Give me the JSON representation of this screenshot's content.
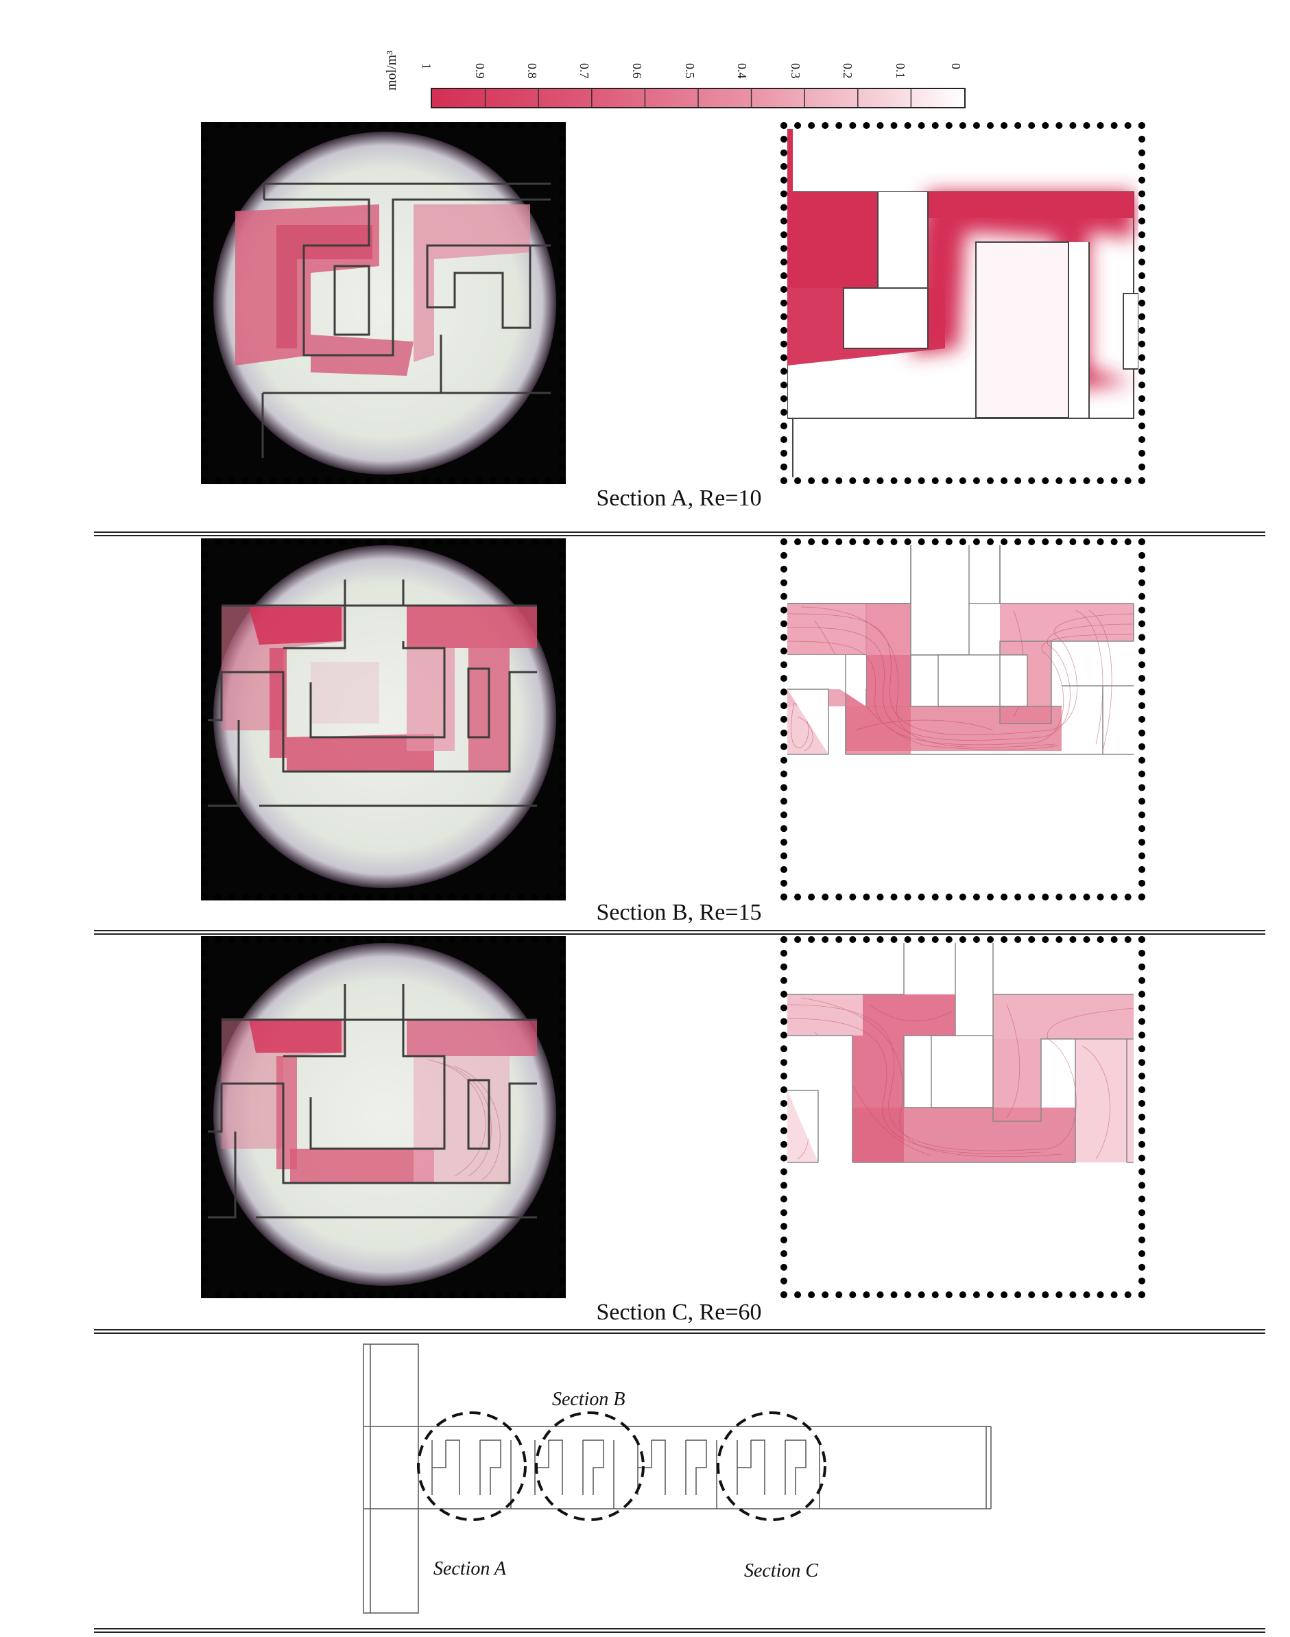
{
  "colorbar": {
    "unit": "mol/m³",
    "ticks": [
      "1",
      "0.9",
      "0.8",
      "0.7",
      "0.6",
      "0.5",
      "0.4",
      "0.3",
      "0.2",
      "0.1",
      "0"
    ],
    "color_high": "#d42f55",
    "color_low": "#ffffff"
  },
  "panels": [
    {
      "caption": "Section A, Re=10"
    },
    {
      "caption": "Section B, Re=15"
    },
    {
      "caption": "Section C, Re=60"
    }
  ],
  "schematic": {
    "section_a": "Section A",
    "section_b": "Section B",
    "section_c": "Section C"
  },
  "colors": {
    "dye": "#d42f55",
    "channel_fluid": "#dfe6dc",
    "frame": "#000000"
  }
}
